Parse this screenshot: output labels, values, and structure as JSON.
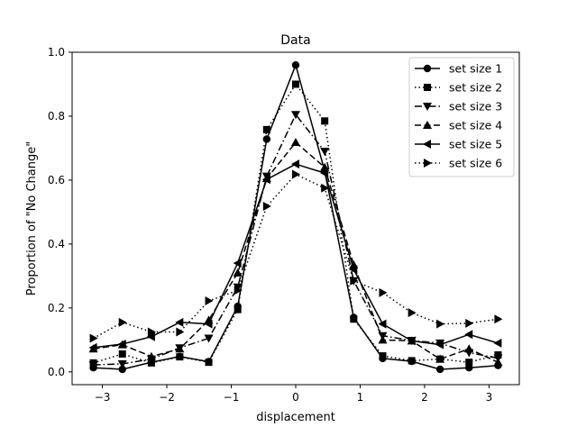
{
  "chart_data": {
    "type": "line",
    "title": "Data",
    "xlabel": "displacement",
    "ylabel": "Proportion of \"No Change\"",
    "xlim": [
      -3.47,
      3.47
    ],
    "ylim": [
      -0.04,
      1.0
    ],
    "xticks": [
      -3,
      -2,
      -1,
      0,
      1,
      2,
      3
    ],
    "yticks": [
      0.0,
      0.2,
      0.4,
      0.6,
      0.8,
      1.0
    ],
    "xtick_labels": [
      "−3",
      "−2",
      "−1",
      "0",
      "1",
      "2",
      "3"
    ],
    "ytick_labels": [
      "0.0",
      "0.2",
      "0.4",
      "0.6",
      "0.8",
      "1.0"
    ],
    "grid": false,
    "legend_position": "top-right",
    "x": [
      -3.14,
      -2.69,
      -2.24,
      -1.8,
      -1.35,
      -0.9,
      -0.45,
      0.0,
      0.45,
      0.9,
      1.35,
      1.8,
      2.24,
      2.69,
      3.14
    ],
    "series": [
      {
        "name": "set size 1",
        "marker": "circle",
        "dash": "solid",
        "values": [
          0.013,
          0.008,
          0.03,
          0.048,
          0.032,
          0.205,
          0.728,
          0.96,
          0.628,
          0.17,
          0.042,
          0.033,
          0.008,
          0.013,
          0.02
        ]
      },
      {
        "name": "set size 2",
        "marker": "square",
        "dash": "dotted",
        "values": [
          0.028,
          0.056,
          0.028,
          0.047,
          0.03,
          0.195,
          0.758,
          0.9,
          0.785,
          0.165,
          0.05,
          0.035,
          0.04,
          0.03,
          0.053
        ]
      },
      {
        "name": "set size 3",
        "marker": "triangle-down",
        "dash": "dashdot",
        "values": [
          0.022,
          0.025,
          0.04,
          0.075,
          0.105,
          0.265,
          0.612,
          0.805,
          0.69,
          0.285,
          0.113,
          0.098,
          0.09,
          0.06,
          0.043
        ]
      },
      {
        "name": "set size 4",
        "marker": "triangle-up",
        "dash": "dashed",
        "values": [
          0.072,
          0.085,
          0.048,
          0.072,
          0.162,
          0.31,
          0.605,
          0.718,
          0.64,
          0.335,
          0.1,
          0.097,
          0.04,
          0.072,
          0.03
        ]
      },
      {
        "name": "set size 5",
        "marker": "triangle-left",
        "dash": "solid",
        "values": [
          0.076,
          0.087,
          0.11,
          0.155,
          0.15,
          0.34,
          0.602,
          0.65,
          0.622,
          0.32,
          0.15,
          0.097,
          0.085,
          0.117,
          0.09
        ]
      },
      {
        "name": "set size 6",
        "marker": "triangle-right",
        "dash": "dotted",
        "values": [
          0.105,
          0.155,
          0.125,
          0.125,
          0.222,
          0.255,
          0.518,
          0.618,
          0.575,
          0.285,
          0.248,
          0.185,
          0.15,
          0.152,
          0.165
        ]
      }
    ]
  }
}
